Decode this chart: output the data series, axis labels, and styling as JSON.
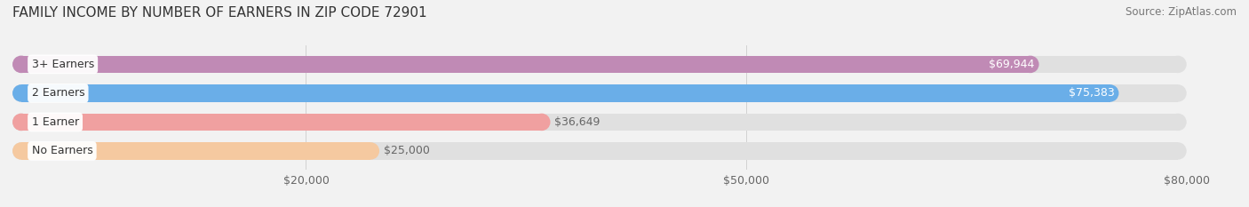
{
  "title": "FAMILY INCOME BY NUMBER OF EARNERS IN ZIP CODE 72901",
  "source": "Source: ZipAtlas.com",
  "categories": [
    "No Earners",
    "1 Earner",
    "2 Earners",
    "3+ Earners"
  ],
  "values": [
    25000,
    36649,
    75383,
    69944
  ],
  "bar_colors": [
    "#f5c9a0",
    "#f0a0a0",
    "#6aaee8",
    "#c08ab5"
  ],
  "label_colors": [
    "#888888",
    "#888888",
    "#ffffff",
    "#ffffff"
  ],
  "x_min": 0,
  "x_max": 80000,
  "x_ticks": [
    20000,
    50000,
    80000
  ],
  "x_tick_labels": [
    "$20,000",
    "$50,000",
    "$80,000"
  ],
  "background_color": "#f2f2f2",
  "bar_background_color": "#e0e0e0",
  "title_fontsize": 11,
  "source_fontsize": 8.5,
  "tick_fontsize": 9,
  "bar_label_fontsize": 9,
  "category_fontsize": 9
}
